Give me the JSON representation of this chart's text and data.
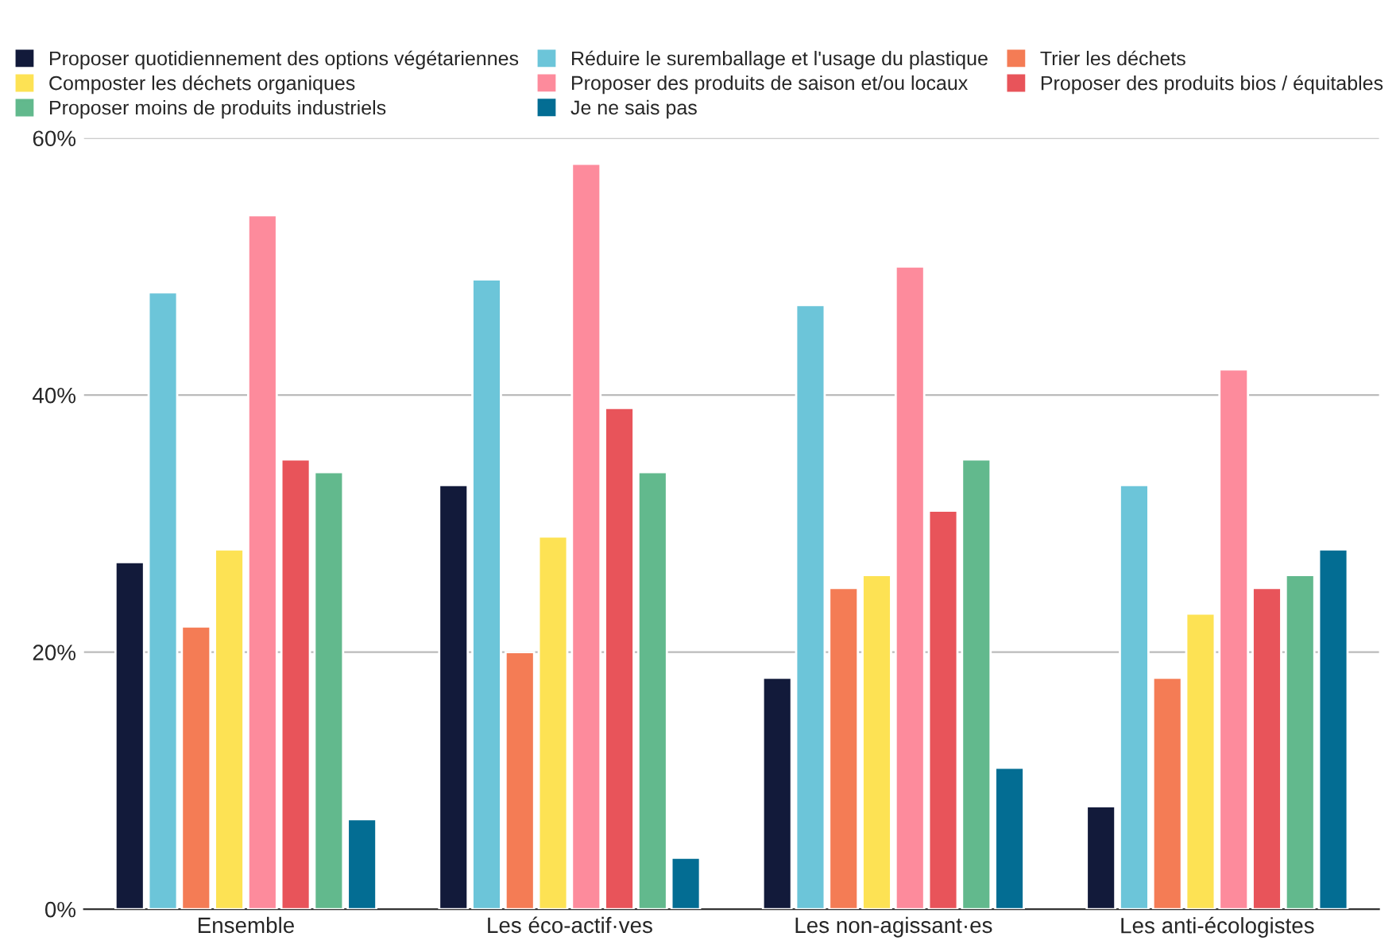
{
  "chart_data": {
    "type": "bar",
    "categories": [
      "Ensemble",
      "Les éco-actif·ves",
      "Les non-agissant·es",
      "Les anti-écologistes"
    ],
    "series": [
      {
        "name": "Proposer quotidiennement des options végétariennes",
        "color": "#121a3a",
        "values": [
          27,
          33,
          18,
          8
        ]
      },
      {
        "name": "Réduire le suremballage et l'usage du plastique",
        "color": "#6cc5d9",
        "values": [
          48,
          49,
          47,
          33
        ]
      },
      {
        "name": "Trier les déchets",
        "color": "#f47c55",
        "values": [
          22,
          20,
          25,
          18
        ]
      },
      {
        "name": "Composter les déchets organiques",
        "color": "#fde254",
        "values": [
          28,
          29,
          26,
          23
        ]
      },
      {
        "name": "Proposer des produits de saison et/ou locaux",
        "color": "#fd8b9c",
        "values": [
          54,
          58,
          50,
          42
        ]
      },
      {
        "name": "Proposer des produits bios / équitables",
        "color": "#e8545a",
        "values": [
          35,
          39,
          31,
          25
        ]
      },
      {
        "name": "Proposer moins de produits industriels",
        "color": "#62b98d",
        "values": [
          34,
          34,
          35,
          26
        ]
      },
      {
        "name": "Je ne sais pas",
        "color": "#036d93",
        "values": [
          7,
          4,
          11,
          28
        ]
      }
    ],
    "ylim": [
      0,
      60
    ],
    "yticks": [
      {
        "value": 0,
        "label": "0%"
      },
      {
        "value": 20,
        "label": "20%"
      },
      {
        "value": 40,
        "label": "40%"
      },
      {
        "value": 60,
        "label": "60%"
      }
    ],
    "grid": "y",
    "legend": "top"
  }
}
